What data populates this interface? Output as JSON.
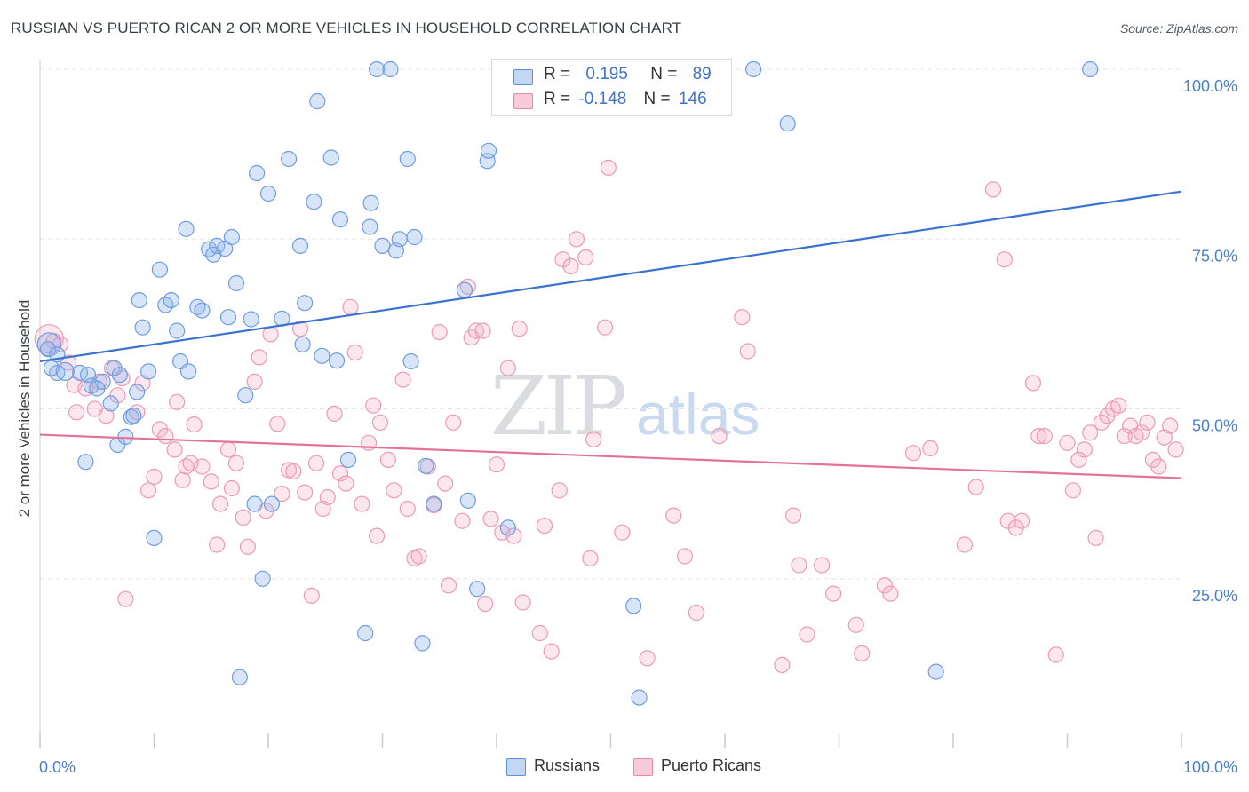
{
  "title": "RUSSIAN VS PUERTO RICAN 2 OR MORE VEHICLES IN HOUSEHOLD CORRELATION CHART",
  "source": "Source: ZipAtlas.com",
  "watermark": {
    "part1": "ZIP",
    "part2": "atlas"
  },
  "legend": {
    "rows": [
      {
        "r_label": "R =",
        "r_value": "0.195",
        "n_label": "N =",
        "n_value": "89"
      },
      {
        "r_label": "R =",
        "r_value": "-0.148",
        "n_label": "N =",
        "n_value": "146"
      }
    ]
  },
  "bottom_legend": [
    "Russians",
    "Puerto Ricans"
  ],
  "colors": {
    "russians": "#5b8fd9",
    "puerto_ricans": "#ea86a6",
    "russians_line": "#3a72d0",
    "puerto_ricans_line": "#e3729a",
    "tick": "#4a7fd0"
  },
  "chart_data": {
    "type": "scatter",
    "xlabel": "",
    "ylabel": "2 or more Vehicles in Household",
    "xlim": [
      0,
      100
    ],
    "ylim": [
      0,
      100
    ],
    "x_tick_labels": [
      "0.0%",
      "100.0%"
    ],
    "y_ticks": [
      25,
      50,
      75,
      100
    ],
    "y_tick_labels": [
      "25.0%",
      "50.0%",
      "75.0%",
      "100.0%"
    ],
    "grid": true,
    "legend_placement": "top-center",
    "series": [
      {
        "name": "Russians",
        "trend": [
          [
            0,
            57.0
          ],
          [
            100,
            82.0
          ]
        ],
        "points": [
          [
            0.8,
            59.5
          ],
          [
            0.7,
            58.8
          ],
          [
            1.5,
            58.0
          ],
          [
            1.5,
            55.3
          ],
          [
            3.5,
            55.3
          ],
          [
            4.2,
            55.0
          ],
          [
            4.5,
            53.4
          ],
          [
            5.5,
            54.0
          ],
          [
            6.2,
            50.8
          ],
          [
            6.5,
            56.0
          ],
          [
            6.8,
            44.7
          ],
          [
            7.0,
            55.0
          ],
          [
            7.5,
            45.9
          ],
          [
            8.0,
            48.8
          ],
          [
            8.2,
            49.0
          ],
          [
            8.5,
            52.5
          ],
          [
            8.7,
            66.0
          ],
          [
            9.0,
            62.0
          ],
          [
            9.5,
            55.5
          ],
          [
            10.0,
            31.0
          ],
          [
            10.5,
            70.5
          ],
          [
            11.0,
            65.3
          ],
          [
            11.5,
            66.0
          ],
          [
            12.0,
            61.5
          ],
          [
            12.3,
            57.0
          ],
          [
            12.8,
            76.5
          ],
          [
            13.0,
            55.5
          ],
          [
            13.8,
            65.0
          ],
          [
            14.2,
            64.5
          ],
          [
            14.8,
            73.5
          ],
          [
            15.2,
            72.7
          ],
          [
            15.5,
            74.0
          ],
          [
            16.2,
            73.6
          ],
          [
            16.5,
            63.5
          ],
          [
            16.8,
            75.3
          ],
          [
            17.2,
            68.5
          ],
          [
            17.5,
            10.5
          ],
          [
            18.0,
            52.0
          ],
          [
            18.5,
            63.2
          ],
          [
            19.0,
            84.7
          ],
          [
            19.5,
            25.0
          ],
          [
            20.0,
            81.7
          ],
          [
            20.3,
            36.0
          ],
          [
            21.2,
            63.3
          ],
          [
            21.8,
            86.8
          ],
          [
            22.8,
            74.0
          ],
          [
            23.0,
            59.5
          ],
          [
            23.2,
            65.6
          ],
          [
            24.0,
            80.5
          ],
          [
            24.3,
            95.3
          ],
          [
            24.7,
            57.8
          ],
          [
            25.5,
            87.0
          ],
          [
            26.0,
            57.1
          ],
          [
            26.3,
            77.9
          ],
          [
            27.0,
            42.5
          ],
          [
            28.5,
            17.0
          ],
          [
            28.9,
            76.8
          ],
          [
            29.0,
            80.3
          ],
          [
            29.5,
            100.0
          ],
          [
            30.0,
            74.0
          ],
          [
            30.7,
            100.0
          ],
          [
            31.2,
            73.3
          ],
          [
            31.5,
            75.0
          ],
          [
            32.2,
            86.8
          ],
          [
            32.5,
            57.0
          ],
          [
            32.8,
            75.3
          ],
          [
            33.5,
            15.5
          ],
          [
            33.8,
            41.6
          ],
          [
            34.5,
            36.0
          ],
          [
            37.2,
            67.5
          ],
          [
            37.5,
            36.5
          ],
          [
            38.3,
            23.5
          ],
          [
            39.2,
            86.5
          ],
          [
            39.3,
            88.0
          ],
          [
            41.0,
            32.5
          ],
          [
            47.2,
            100.0
          ],
          [
            52.0,
            21.0
          ],
          [
            52.5,
            7.5
          ],
          [
            62.5,
            100.0
          ],
          [
            65.5,
            92.0
          ],
          [
            78.5,
            11.3
          ],
          [
            92.0,
            100.0
          ],
          [
            4.0,
            42.2
          ],
          [
            1.0,
            56.0
          ],
          [
            2.2,
            55.5
          ],
          [
            5.0,
            53.0
          ],
          [
            18.8,
            36.0
          ]
        ]
      },
      {
        "name": "Puerto Ricans",
        "trend": [
          [
            0,
            46.2
          ],
          [
            100,
            39.8
          ]
        ],
        "points": [
          [
            0.8,
            60.3
          ],
          [
            1.2,
            60.0
          ],
          [
            1.8,
            59.5
          ],
          [
            2.5,
            56.8
          ],
          [
            3.0,
            53.5
          ],
          [
            3.2,
            49.5
          ],
          [
            4.0,
            53.0
          ],
          [
            4.8,
            50.0
          ],
          [
            5.2,
            54.0
          ],
          [
            5.8,
            49.0
          ],
          [
            6.3,
            56.0
          ],
          [
            6.8,
            52.0
          ],
          [
            7.2,
            54.5
          ],
          [
            7.5,
            22.0
          ],
          [
            8.5,
            49.5
          ],
          [
            9.0,
            53.8
          ],
          [
            9.5,
            38.0
          ],
          [
            10.0,
            40.0
          ],
          [
            10.5,
            47.0
          ],
          [
            11.0,
            46.0
          ],
          [
            11.8,
            44.0
          ],
          [
            12.0,
            51.0
          ],
          [
            12.5,
            39.5
          ],
          [
            12.8,
            41.5
          ],
          [
            13.2,
            42.0
          ],
          [
            13.5,
            47.7
          ],
          [
            14.2,
            41.5
          ],
          [
            15.0,
            39.3
          ],
          [
            15.5,
            30.0
          ],
          [
            15.8,
            36.0
          ],
          [
            16.5,
            44.0
          ],
          [
            16.8,
            38.3
          ],
          [
            17.2,
            42.0
          ],
          [
            17.8,
            34.0
          ],
          [
            18.2,
            29.7
          ],
          [
            18.8,
            54.0
          ],
          [
            19.2,
            57.6
          ],
          [
            19.8,
            35.0
          ],
          [
            20.2,
            61.0
          ],
          [
            20.8,
            47.8
          ],
          [
            21.2,
            37.5
          ],
          [
            21.8,
            41.0
          ],
          [
            22.2,
            40.8
          ],
          [
            22.8,
            61.8
          ],
          [
            23.2,
            37.7
          ],
          [
            23.8,
            22.5
          ],
          [
            24.2,
            42.0
          ],
          [
            24.8,
            35.3
          ],
          [
            25.2,
            37.0
          ],
          [
            25.8,
            49.3
          ],
          [
            26.3,
            40.5
          ],
          [
            26.8,
            39.0
          ],
          [
            27.2,
            65.0
          ],
          [
            27.6,
            58.3
          ],
          [
            28.2,
            36.0
          ],
          [
            28.8,
            45.0
          ],
          [
            29.2,
            50.5
          ],
          [
            29.5,
            31.3
          ],
          [
            29.8,
            48.0
          ],
          [
            30.5,
            42.5
          ],
          [
            31.0,
            38.0
          ],
          [
            31.8,
            54.3
          ],
          [
            32.2,
            35.3
          ],
          [
            32.8,
            28.0
          ],
          [
            33.2,
            28.3
          ],
          [
            34.0,
            41.5
          ],
          [
            34.5,
            35.8
          ],
          [
            35.0,
            61.3
          ],
          [
            35.5,
            39.0
          ],
          [
            35.8,
            24.0
          ],
          [
            36.2,
            48.0
          ],
          [
            37.0,
            33.5
          ],
          [
            37.5,
            68.0
          ],
          [
            37.8,
            60.5
          ],
          [
            38.2,
            61.5
          ],
          [
            38.8,
            61.5
          ],
          [
            39.0,
            21.3
          ],
          [
            39.5,
            33.8
          ],
          [
            40.0,
            41.8
          ],
          [
            40.5,
            31.8
          ],
          [
            41.0,
            56.0
          ],
          [
            41.5,
            31.3
          ],
          [
            42.0,
            61.8
          ],
          [
            42.3,
            21.5
          ],
          [
            43.8,
            17.0
          ],
          [
            44.2,
            32.8
          ],
          [
            44.8,
            14.3
          ],
          [
            45.5,
            38.0
          ],
          [
            45.8,
            72.0
          ],
          [
            46.5,
            71.0
          ],
          [
            47.0,
            75.0
          ],
          [
            47.8,
            72.3
          ],
          [
            48.2,
            28.0
          ],
          [
            48.5,
            45.5
          ],
          [
            49.5,
            62.0
          ],
          [
            49.8,
            85.5
          ],
          [
            51.0,
            31.8
          ],
          [
            53.2,
            13.3
          ],
          [
            55.5,
            34.3
          ],
          [
            56.5,
            28.3
          ],
          [
            57.5,
            20.0
          ],
          [
            59.5,
            46.0
          ],
          [
            61.5,
            63.5
          ],
          [
            62.0,
            58.5
          ],
          [
            65.0,
            12.3
          ],
          [
            66.0,
            34.3
          ],
          [
            66.5,
            27.0
          ],
          [
            67.2,
            16.8
          ],
          [
            68.5,
            27.0
          ],
          [
            69.5,
            22.8
          ],
          [
            71.5,
            18.2
          ],
          [
            72.0,
            14.0
          ],
          [
            74.0,
            24.0
          ],
          [
            74.5,
            22.8
          ],
          [
            76.5,
            43.5
          ],
          [
            78.0,
            44.2
          ],
          [
            81.0,
            30.0
          ],
          [
            82.0,
            38.5
          ],
          [
            83.5,
            82.3
          ],
          [
            84.5,
            72.0
          ],
          [
            84.8,
            33.5
          ],
          [
            85.5,
            32.5
          ],
          [
            86.0,
            33.5
          ],
          [
            87.0,
            53.8
          ],
          [
            87.5,
            46.0
          ],
          [
            88.0,
            46.0
          ],
          [
            89.0,
            13.8
          ],
          [
            90.0,
            45.0
          ],
          [
            90.5,
            38.0
          ],
          [
            91.0,
            42.5
          ],
          [
            91.5,
            44.0
          ],
          [
            92.0,
            46.5
          ],
          [
            92.5,
            31.0
          ],
          [
            93.0,
            48.0
          ],
          [
            93.5,
            49.0
          ],
          [
            94.0,
            50.0
          ],
          [
            94.5,
            50.5
          ],
          [
            95.0,
            46.0
          ],
          [
            95.5,
            47.5
          ],
          [
            96.0,
            46.0
          ],
          [
            96.5,
            46.5
          ],
          [
            97.0,
            48.0
          ],
          [
            97.5,
            42.5
          ],
          [
            98.0,
            41.5
          ],
          [
            98.5,
            45.8
          ],
          [
            99.0,
            47.5
          ],
          [
            99.5,
            44.0
          ]
        ]
      }
    ]
  }
}
